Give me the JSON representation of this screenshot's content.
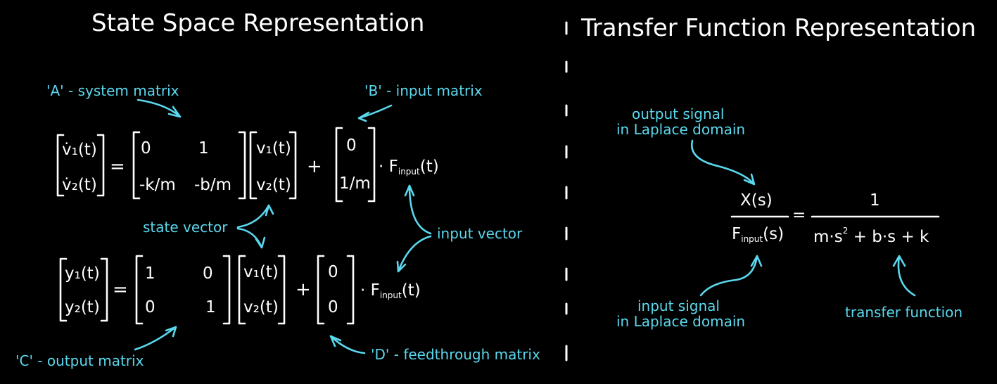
{
  "titles": {
    "state_space": "State Space Representation",
    "transfer_function": "Transfer Function Representation"
  },
  "annotations": {
    "a_matrix": "'A' - system matrix",
    "b_matrix": "'B' - input matrix",
    "c_matrix": "'C' - output matrix",
    "d_matrix": "'D' - feedthrough matrix",
    "state_vector": "state vector",
    "input_vector": "input vector",
    "output_signal_line1": "output signal",
    "output_signal_line2": "in Laplace domain",
    "input_signal_line1": "input signal",
    "input_signal_line2": "in Laplace domain",
    "transfer_function": "transfer function"
  },
  "state_equation": {
    "lhs": [
      "v̇₁(t)",
      "v̇₂(t)"
    ],
    "equals": "=",
    "A": [
      [
        "0",
        "1"
      ],
      [
        "-k/m",
        "-b/m"
      ]
    ],
    "x": [
      "v₁(t)",
      "v₂(t)"
    ],
    "plus": "+",
    "B": [
      "0",
      "1/m"
    ],
    "input_prefix": "· F",
    "input_sub": "input",
    "input_suffix": "(t)"
  },
  "output_equation": {
    "lhs": [
      "y₁(t)",
      "y₂(t)"
    ],
    "equals": "=",
    "C": [
      [
        "1",
        "0"
      ],
      [
        "0",
        "1"
      ]
    ],
    "x": [
      "v₁(t)",
      "v₂(t)"
    ],
    "plus": "+",
    "D": [
      "0",
      "0"
    ],
    "input_prefix": "· F",
    "input_sub": "input",
    "input_suffix": "(t)"
  },
  "transfer": {
    "num_left": "X(s)",
    "den_left_F": "F",
    "den_left_sub": "input",
    "den_left_suffix": "(s)",
    "equals": "=",
    "num_right": "1",
    "den_right_a": "m·s",
    "den_right_exp": "2",
    "den_right_b": " + b·s + k"
  }
}
